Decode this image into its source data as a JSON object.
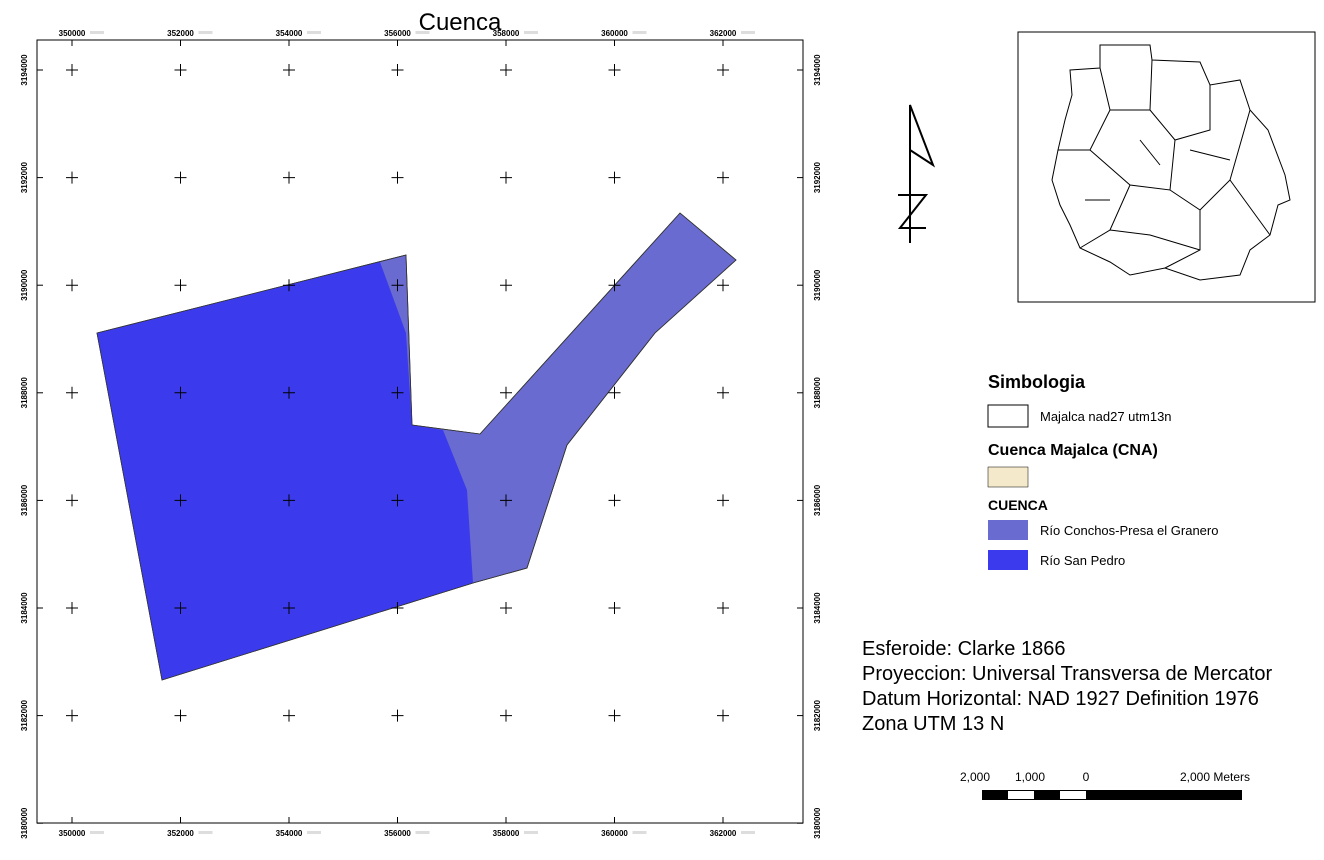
{
  "title": "Cuenca",
  "x_labels": [
    350000,
    352000,
    354000,
    356000,
    358000,
    360000,
    362000
  ],
  "y_labels": [
    3194000,
    3192000,
    3190000,
    3188000,
    3186000,
    3184000,
    3182000,
    3180000
  ],
  "legend": {
    "title": "Simbologia",
    "layer_label": "Majalca nad27 utm13n",
    "group_title": "Cuenca Majalca (CNA)",
    "class_title": "CUENCA",
    "classes": [
      "Río Conchos-Presa el Granero",
      "Río San Pedro"
    ]
  },
  "info": [
    "Esferoide: Clarke 1866",
    "Proyeccion: Universal Transversa de Mercator",
    "Datum Horizontal: NAD 1927 Definition 1976",
    "Zona UTM 13 N"
  ],
  "scale_bar": {
    "labels": [
      "2,000",
      "1,000",
      "0",
      "2,000 Meters"
    ]
  }
}
